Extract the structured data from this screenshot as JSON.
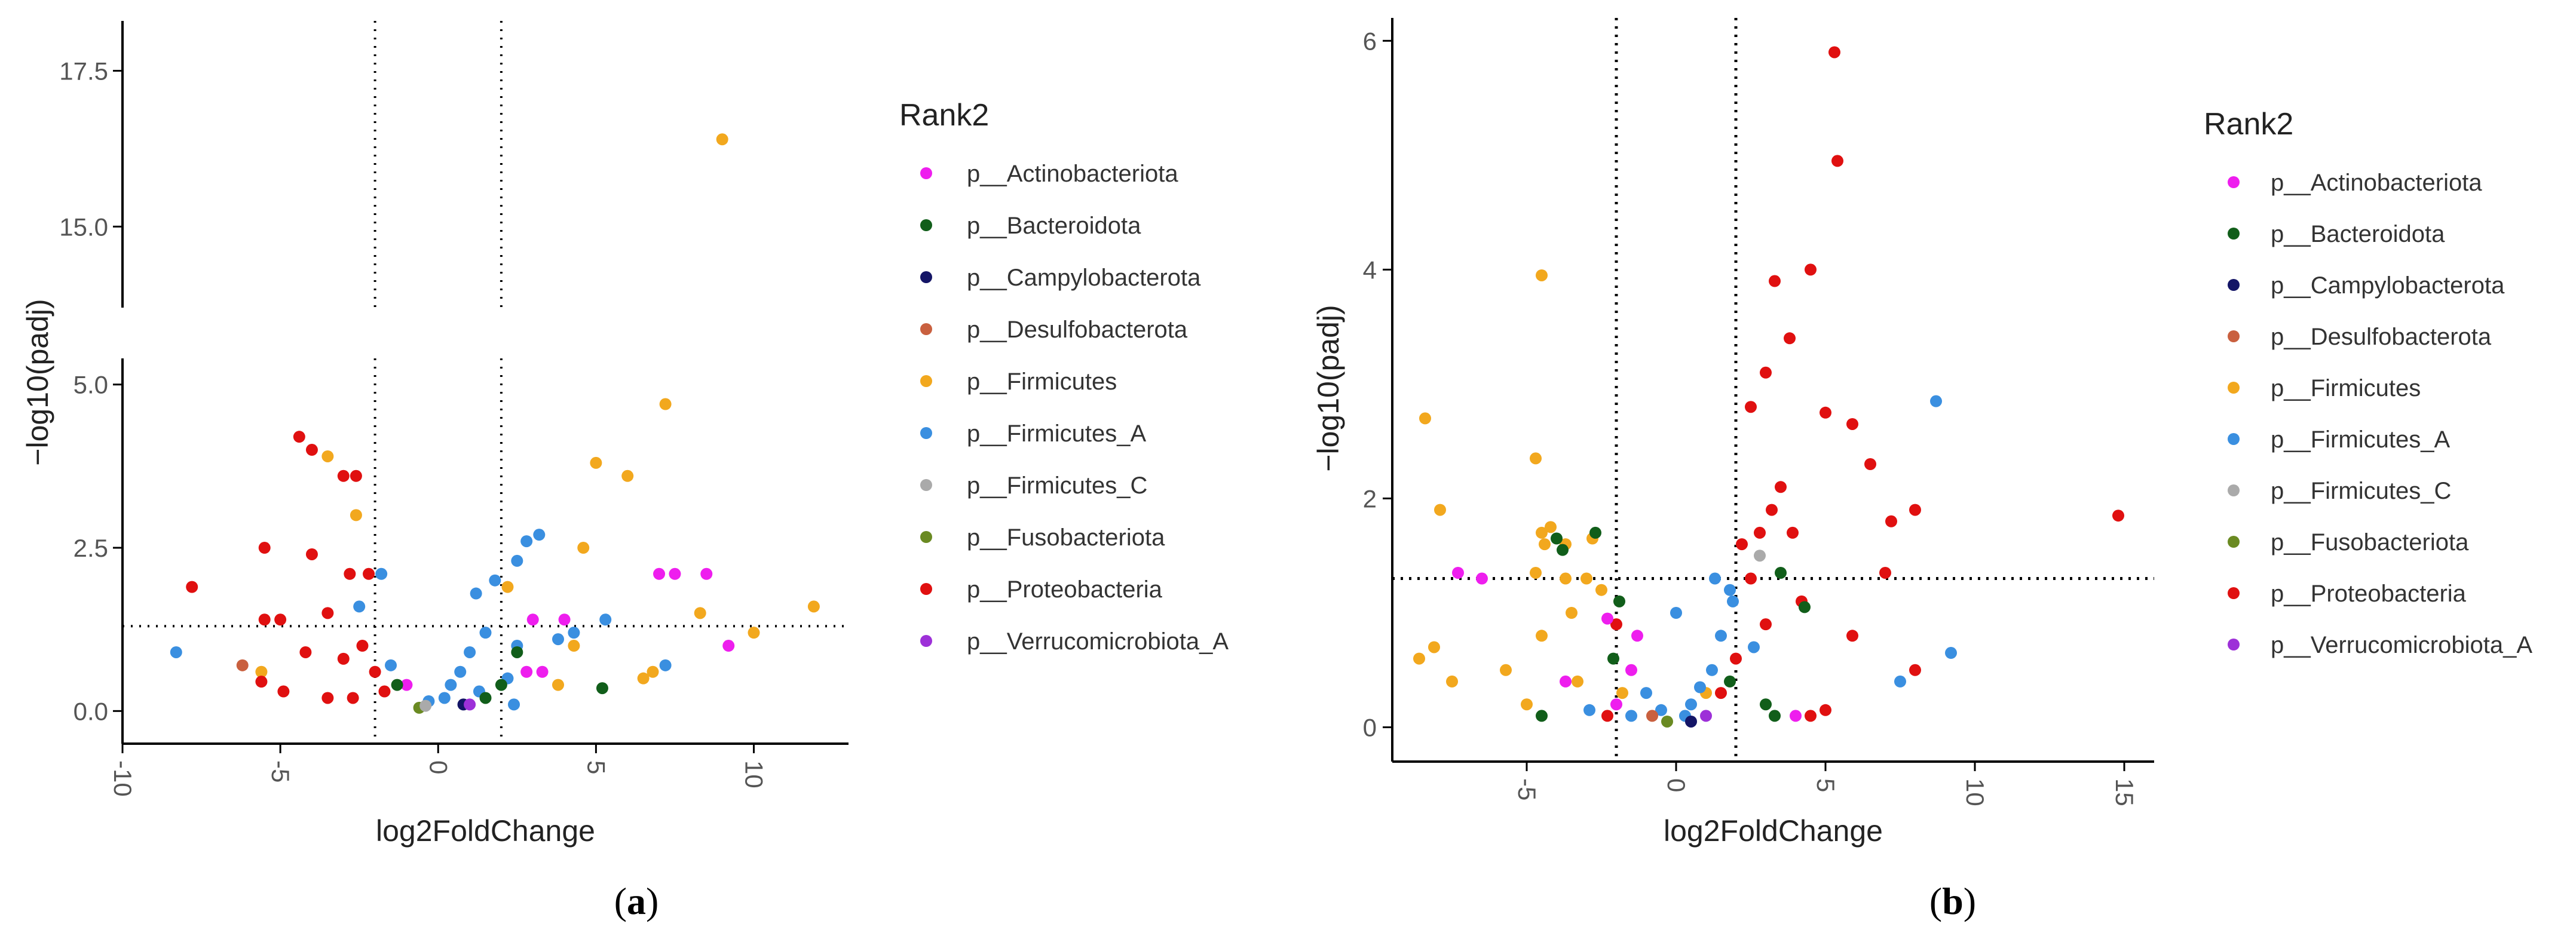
{
  "legend_title": "Rank2",
  "categories": [
    "p__Actinobacteriota",
    "p__Bacteroidota",
    "p__Campylobacterota",
    "p__Desulfobacterota",
    "p__Firmicutes",
    "p__Firmicutes_A",
    "p__Firmicutes_C",
    "p__Fusobacteriota",
    "p__Proteobacteria",
    "p__Verrucomicrobiota_A"
  ],
  "colors": {
    "p__Actinobacteriota": "#ee1eee",
    "p__Bacteroidota": "#115e1a",
    "p__Campylobacterota": "#141566",
    "p__Desulfobacterota": "#c9603f",
    "p__Firmicutes": "#f2a81e",
    "p__Firmicutes_A": "#3a8fe0",
    "p__Firmicutes_C": "#aaaaaa",
    "p__Fusobacteriota": "#6a8a22",
    "p__Proteobacteria": "#e01010",
    "p__Verrucomicrobiota_A": "#9d30d8"
  },
  "chart_data": [
    {
      "type": "scatter",
      "panel": "(a)",
      "caption_letter": "a",
      "xlabel": "log2FoldChange",
      "ylabel": "−log10(padj)",
      "xlim": [
        -10,
        13
      ],
      "ylim_lower": [
        -0.5,
        5.4
      ],
      "ylim_upper": [
        13.7,
        18.3
      ],
      "xticks": [
        -10,
        -5,
        0,
        5,
        10
      ],
      "yticks_lower": [
        0.0,
        2.5,
        5.0
      ],
      "yticks_upper": [
        15.0,
        17.5
      ],
      "thresholds": {
        "x": [
          -2,
          2
        ],
        "y": 1.3
      },
      "legend": "right",
      "grid": false,
      "points": [
        {
          "x": 9.0,
          "y": 16.4,
          "g": "p__Firmicutes"
        },
        {
          "x": 7.2,
          "y": 4.7,
          "g": "p__Firmicutes"
        },
        {
          "x": 5.0,
          "y": 3.8,
          "g": "p__Firmicutes"
        },
        {
          "x": 6.0,
          "y": 3.6,
          "g": "p__Firmicutes"
        },
        {
          "x": 4.6,
          "y": 2.5,
          "g": "p__Firmicutes"
        },
        {
          "x": 11.9,
          "y": 1.6,
          "g": "p__Firmicutes"
        },
        {
          "x": 10.0,
          "y": 1.2,
          "g": "p__Firmicutes"
        },
        {
          "x": 8.3,
          "y": 1.5,
          "g": "p__Firmicutes"
        },
        {
          "x": 6.8,
          "y": 0.6,
          "g": "p__Firmicutes"
        },
        {
          "x": 6.5,
          "y": 0.5,
          "g": "p__Firmicutes"
        },
        {
          "x": -3.5,
          "y": 3.9,
          "g": "p__Firmicutes"
        },
        {
          "x": -2.6,
          "y": 3.0,
          "g": "p__Firmicutes"
        },
        {
          "x": 2.2,
          "y": 1.9,
          "g": "p__Firmicutes"
        },
        {
          "x": -5.6,
          "y": 0.6,
          "g": "p__Firmicutes"
        },
        {
          "x": 4.3,
          "y": 1.0,
          "g": "p__Firmicutes"
        },
        {
          "x": 3.8,
          "y": 0.4,
          "g": "p__Firmicutes"
        },
        {
          "x": 7.0,
          "y": 2.1,
          "g": "p__Actinobacteriota"
        },
        {
          "x": 7.5,
          "y": 2.1,
          "g": "p__Actinobacteriota"
        },
        {
          "x": 8.5,
          "y": 2.1,
          "g": "p__Actinobacteriota"
        },
        {
          "x": 9.2,
          "y": 1.0,
          "g": "p__Actinobacteriota"
        },
        {
          "x": 3.0,
          "y": 1.4,
          "g": "p__Actinobacteriota"
        },
        {
          "x": 4.0,
          "y": 1.4,
          "g": "p__Actinobacteriota"
        },
        {
          "x": 2.8,
          "y": 0.6,
          "g": "p__Actinobacteriota"
        },
        {
          "x": 3.3,
          "y": 0.6,
          "g": "p__Actinobacteriota"
        },
        {
          "x": -1.0,
          "y": 0.4,
          "g": "p__Actinobacteriota"
        },
        {
          "x": 3.2,
          "y": 2.7,
          "g": "p__Firmicutes_A"
        },
        {
          "x": 2.8,
          "y": 2.6,
          "g": "p__Firmicutes_A"
        },
        {
          "x": 2.5,
          "y": 2.3,
          "g": "p__Firmicutes_A"
        },
        {
          "x": 1.8,
          "y": 2.0,
          "g": "p__Firmicutes_A"
        },
        {
          "x": 1.2,
          "y": 1.8,
          "g": "p__Firmicutes_A"
        },
        {
          "x": -1.8,
          "y": 2.1,
          "g": "p__Firmicutes_A"
        },
        {
          "x": -8.3,
          "y": 0.9,
          "g": "p__Firmicutes_A"
        },
        {
          "x": 7.2,
          "y": 0.7,
          "g": "p__Firmicutes_A"
        },
        {
          "x": 5.3,
          "y": 1.4,
          "g": "p__Firmicutes_A"
        },
        {
          "x": 4.3,
          "y": 1.2,
          "g": "p__Firmicutes_A"
        },
        {
          "x": 2.5,
          "y": 1.0,
          "g": "p__Firmicutes_A"
        },
        {
          "x": 1.5,
          "y": 1.2,
          "g": "p__Firmicutes_A"
        },
        {
          "x": 1.0,
          "y": 0.9,
          "g": "p__Firmicutes_A"
        },
        {
          "x": 0.7,
          "y": 0.6,
          "g": "p__Firmicutes_A"
        },
        {
          "x": 0.4,
          "y": 0.4,
          "g": "p__Firmicutes_A"
        },
        {
          "x": 0.2,
          "y": 0.2,
          "g": "p__Firmicutes_A"
        },
        {
          "x": 1.3,
          "y": 0.3,
          "g": "p__Firmicutes_A"
        },
        {
          "x": 2.2,
          "y": 0.5,
          "g": "p__Firmicutes_A"
        },
        {
          "x": -0.3,
          "y": 0.15,
          "g": "p__Firmicutes_A"
        },
        {
          "x": -1.5,
          "y": 0.7,
          "g": "p__Firmicutes_A"
        },
        {
          "x": -2.5,
          "y": 1.6,
          "g": "p__Firmicutes_A"
        },
        {
          "x": 3.8,
          "y": 1.1,
          "g": "p__Firmicutes_A"
        },
        {
          "x": 2.4,
          "y": 0.1,
          "g": "p__Firmicutes_A"
        },
        {
          "x": -4.4,
          "y": 4.2,
          "g": "p__Proteobacteria"
        },
        {
          "x": -4.0,
          "y": 4.0,
          "g": "p__Proteobacteria"
        },
        {
          "x": -3.0,
          "y": 3.6,
          "g": "p__Proteobacteria"
        },
        {
          "x": -2.6,
          "y": 3.6,
          "g": "p__Proteobacteria"
        },
        {
          "x": -5.5,
          "y": 2.5,
          "g": "p__Proteobacteria"
        },
        {
          "x": -4.0,
          "y": 2.4,
          "g": "p__Proteobacteria"
        },
        {
          "x": -7.8,
          "y": 1.9,
          "g": "p__Proteobacteria"
        },
        {
          "x": -5.5,
          "y": 1.4,
          "g": "p__Proteobacteria"
        },
        {
          "x": -5.0,
          "y": 1.4,
          "g": "p__Proteobacteria"
        },
        {
          "x": -2.8,
          "y": 2.1,
          "g": "p__Proteobacteria"
        },
        {
          "x": -2.2,
          "y": 2.1,
          "g": "p__Proteobacteria"
        },
        {
          "x": -3.5,
          "y": 1.5,
          "g": "p__Proteobacteria"
        },
        {
          "x": -4.2,
          "y": 0.9,
          "g": "p__Proteobacteria"
        },
        {
          "x": -3.0,
          "y": 0.8,
          "g": "p__Proteobacteria"
        },
        {
          "x": -5.6,
          "y": 0.45,
          "g": "p__Proteobacteria"
        },
        {
          "x": -4.9,
          "y": 0.3,
          "g": "p__Proteobacteria"
        },
        {
          "x": -3.5,
          "y": 0.2,
          "g": "p__Proteobacteria"
        },
        {
          "x": -2.4,
          "y": 1.0,
          "g": "p__Proteobacteria"
        },
        {
          "x": -2.0,
          "y": 0.6,
          "g": "p__Proteobacteria"
        },
        {
          "x": -2.7,
          "y": 0.2,
          "g": "p__Proteobacteria"
        },
        {
          "x": -1.7,
          "y": 0.3,
          "g": "p__Proteobacteria"
        },
        {
          "x": -6.2,
          "y": 0.7,
          "g": "p__Desulfobacterota"
        },
        {
          "x": 5.2,
          "y": 0.35,
          "g": "p__Bacteroidota"
        },
        {
          "x": 2.5,
          "y": 0.9,
          "g": "p__Bacteroidota"
        },
        {
          "x": 2.0,
          "y": 0.4,
          "g": "p__Bacteroidota"
        },
        {
          "x": 1.5,
          "y": 0.2,
          "g": "p__Bacteroidota"
        },
        {
          "x": -1.3,
          "y": 0.4,
          "g": "p__Bacteroidota"
        },
        {
          "x": 0.8,
          "y": 0.1,
          "g": "p__Campylobacterota"
        },
        {
          "x": -0.6,
          "y": 0.05,
          "g": "p__Fusobacteriota"
        },
        {
          "x": 1.0,
          "y": 0.1,
          "g": "p__Verrucomicrobiota_A"
        },
        {
          "x": -0.4,
          "y": 0.08,
          "g": "p__Firmicutes_C"
        }
      ]
    },
    {
      "type": "scatter",
      "panel": "(b)",
      "caption_letter": "b",
      "xlabel": "log2FoldChange",
      "ylabel": "−log10(padj)",
      "xlim": [
        -9.5,
        16
      ],
      "ylim": [
        -0.3,
        6.2
      ],
      "xticks": [
        -5,
        0,
        5,
        10,
        15
      ],
      "yticks": [
        0,
        2,
        4,
        6
      ],
      "thresholds": {
        "x": [
          -2,
          2
        ],
        "y": 1.3
      },
      "legend": "right",
      "grid": false,
      "points": [
        {
          "x": 5.3,
          "y": 5.9,
          "g": "p__Proteobacteria"
        },
        {
          "x": 5.4,
          "y": 4.95,
          "g": "p__Proteobacteria"
        },
        {
          "x": 4.5,
          "y": 4.0,
          "g": "p__Proteobacteria"
        },
        {
          "x": 3.3,
          "y": 3.9,
          "g": "p__Proteobacteria"
        },
        {
          "x": 3.8,
          "y": 3.4,
          "g": "p__Proteobacteria"
        },
        {
          "x": 3.0,
          "y": 3.1,
          "g": "p__Proteobacteria"
        },
        {
          "x": 2.5,
          "y": 2.8,
          "g": "p__Proteobacteria"
        },
        {
          "x": 5.0,
          "y": 2.75,
          "g": "p__Proteobacteria"
        },
        {
          "x": 5.9,
          "y": 2.65,
          "g": "p__Proteobacteria"
        },
        {
          "x": 6.5,
          "y": 2.3,
          "g": "p__Proteobacteria"
        },
        {
          "x": 3.5,
          "y": 2.1,
          "g": "p__Proteobacteria"
        },
        {
          "x": 3.2,
          "y": 1.9,
          "g": "p__Proteobacteria"
        },
        {
          "x": 8.0,
          "y": 1.9,
          "g": "p__Proteobacteria"
        },
        {
          "x": 14.8,
          "y": 1.85,
          "g": "p__Proteobacteria"
        },
        {
          "x": 7.2,
          "y": 1.8,
          "g": "p__Proteobacteria"
        },
        {
          "x": 3.9,
          "y": 1.7,
          "g": "p__Proteobacteria"
        },
        {
          "x": 2.8,
          "y": 1.7,
          "g": "p__Proteobacteria"
        },
        {
          "x": 2.2,
          "y": 1.6,
          "g": "p__Proteobacteria"
        },
        {
          "x": 2.5,
          "y": 1.3,
          "g": "p__Proteobacteria"
        },
        {
          "x": 7.0,
          "y": 1.35,
          "g": "p__Proteobacteria"
        },
        {
          "x": 4.2,
          "y": 1.1,
          "g": "p__Proteobacteria"
        },
        {
          "x": 5.9,
          "y": 0.8,
          "g": "p__Proteobacteria"
        },
        {
          "x": 8.0,
          "y": 0.5,
          "g": "p__Proteobacteria"
        },
        {
          "x": 3.0,
          "y": 0.9,
          "g": "p__Proteobacteria"
        },
        {
          "x": 2.0,
          "y": 0.6,
          "g": "p__Proteobacteria"
        },
        {
          "x": 5.0,
          "y": 0.15,
          "g": "p__Proteobacteria"
        },
        {
          "x": 4.5,
          "y": 0.1,
          "g": "p__Proteobacteria"
        },
        {
          "x": 1.5,
          "y": 0.3,
          "g": "p__Proteobacteria"
        },
        {
          "x": -2.0,
          "y": 0.9,
          "g": "p__Proteobacteria"
        },
        {
          "x": -2.3,
          "y": 0.1,
          "g": "p__Proteobacteria"
        },
        {
          "x": -4.5,
          "y": 3.95,
          "g": "p__Firmicutes"
        },
        {
          "x": -8.4,
          "y": 2.7,
          "g": "p__Firmicutes"
        },
        {
          "x": -4.7,
          "y": 2.35,
          "g": "p__Firmicutes"
        },
        {
          "x": -7.9,
          "y": 1.9,
          "g": "p__Firmicutes"
        },
        {
          "x": -4.2,
          "y": 1.75,
          "g": "p__Firmicutes"
        },
        {
          "x": -4.5,
          "y": 1.7,
          "g": "p__Firmicutes"
        },
        {
          "x": -3.7,
          "y": 1.6,
          "g": "p__Firmicutes"
        },
        {
          "x": -4.4,
          "y": 1.6,
          "g": "p__Firmicutes"
        },
        {
          "x": -2.8,
          "y": 1.65,
          "g": "p__Firmicutes"
        },
        {
          "x": -3.0,
          "y": 1.3,
          "g": "p__Firmicutes"
        },
        {
          "x": -2.5,
          "y": 1.2,
          "g": "p__Firmicutes"
        },
        {
          "x": -3.7,
          "y": 1.3,
          "g": "p__Firmicutes"
        },
        {
          "x": -4.7,
          "y": 1.35,
          "g": "p__Firmicutes"
        },
        {
          "x": -3.5,
          "y": 1.0,
          "g": "p__Firmicutes"
        },
        {
          "x": -4.5,
          "y": 0.8,
          "g": "p__Firmicutes"
        },
        {
          "x": -5.7,
          "y": 0.5,
          "g": "p__Firmicutes"
        },
        {
          "x": -8.1,
          "y": 0.7,
          "g": "p__Firmicutes"
        },
        {
          "x": -8.6,
          "y": 0.6,
          "g": "p__Firmicutes"
        },
        {
          "x": -7.5,
          "y": 0.4,
          "g": "p__Firmicutes"
        },
        {
          "x": -3.3,
          "y": 0.4,
          "g": "p__Firmicutes"
        },
        {
          "x": -5.0,
          "y": 0.2,
          "g": "p__Firmicutes"
        },
        {
          "x": -1.8,
          "y": 0.3,
          "g": "p__Firmicutes"
        },
        {
          "x": 1.0,
          "y": 0.3,
          "g": "p__Firmicutes"
        },
        {
          "x": -4.0,
          "y": 1.65,
          "g": "p__Bacteroidota"
        },
        {
          "x": -2.7,
          "y": 1.7,
          "g": "p__Bacteroidota"
        },
        {
          "x": -3.8,
          "y": 1.55,
          "g": "p__Bacteroidota"
        },
        {
          "x": -1.9,
          "y": 1.1,
          "g": "p__Bacteroidota"
        },
        {
          "x": 3.5,
          "y": 1.35,
          "g": "p__Bacteroidota"
        },
        {
          "x": 4.3,
          "y": 1.05,
          "g": "p__Bacteroidota"
        },
        {
          "x": 3.0,
          "y": 0.2,
          "g": "p__Bacteroidota"
        },
        {
          "x": 3.3,
          "y": 0.1,
          "g": "p__Bacteroidota"
        },
        {
          "x": -4.5,
          "y": 0.1,
          "g": "p__Bacteroidota"
        },
        {
          "x": -2.1,
          "y": 0.6,
          "g": "p__Bacteroidota"
        },
        {
          "x": 1.8,
          "y": 0.4,
          "g": "p__Bacteroidota"
        },
        {
          "x": -6.5,
          "y": 1.3,
          "g": "p__Actinobacteriota"
        },
        {
          "x": -7.3,
          "y": 1.35,
          "g": "p__Actinobacteriota"
        },
        {
          "x": -2.3,
          "y": 0.95,
          "g": "p__Actinobacteriota"
        },
        {
          "x": -1.3,
          "y": 0.8,
          "g": "p__Actinobacteriota"
        },
        {
          "x": -1.5,
          "y": 0.5,
          "g": "p__Actinobacteriota"
        },
        {
          "x": -3.7,
          "y": 0.4,
          "g": "p__Actinobacteriota"
        },
        {
          "x": -2.0,
          "y": 0.2,
          "g": "p__Actinobacteriota"
        },
        {
          "x": 4.0,
          "y": 0.1,
          "g": "p__Actinobacteriota"
        },
        {
          "x": 8.7,
          "y": 2.85,
          "g": "p__Firmicutes_A"
        },
        {
          "x": 9.2,
          "y": 0.65,
          "g": "p__Firmicutes_A"
        },
        {
          "x": 7.5,
          "y": 0.4,
          "g": "p__Firmicutes_A"
        },
        {
          "x": 1.9,
          "y": 1.1,
          "g": "p__Firmicutes_A"
        },
        {
          "x": 1.8,
          "y": 1.2,
          "g": "p__Firmicutes_A"
        },
        {
          "x": 0.0,
          "y": 1.0,
          "g": "p__Firmicutes_A"
        },
        {
          "x": 1.5,
          "y": 0.8,
          "g": "p__Firmicutes_A"
        },
        {
          "x": 1.2,
          "y": 0.5,
          "g": "p__Firmicutes_A"
        },
        {
          "x": 0.8,
          "y": 0.35,
          "g": "p__Firmicutes_A"
        },
        {
          "x": 0.5,
          "y": 0.2,
          "g": "p__Firmicutes_A"
        },
        {
          "x": 0.3,
          "y": 0.1,
          "g": "p__Firmicutes_A"
        },
        {
          "x": -0.5,
          "y": 0.15,
          "g": "p__Firmicutes_A"
        },
        {
          "x": -1.0,
          "y": 0.3,
          "g": "p__Firmicutes_A"
        },
        {
          "x": -1.5,
          "y": 0.1,
          "g": "p__Firmicutes_A"
        },
        {
          "x": -2.9,
          "y": 0.15,
          "g": "p__Firmicutes_A"
        },
        {
          "x": 2.6,
          "y": 0.7,
          "g": "p__Firmicutes_A"
        },
        {
          "x": 1.3,
          "y": 1.3,
          "g": "p__Firmicutes_A"
        },
        {
          "x": 2.8,
          "y": 1.5,
          "g": "p__Firmicutes_C"
        },
        {
          "x": 0.5,
          "y": 0.05,
          "g": "p__Campylobacterota"
        },
        {
          "x": -0.3,
          "y": 0.05,
          "g": "p__Fusobacteriota"
        },
        {
          "x": 1.0,
          "y": 0.1,
          "g": "p__Verrucomicrobiota_A"
        },
        {
          "x": -0.8,
          "y": 0.1,
          "g": "p__Desulfobacterota"
        }
      ]
    }
  ]
}
